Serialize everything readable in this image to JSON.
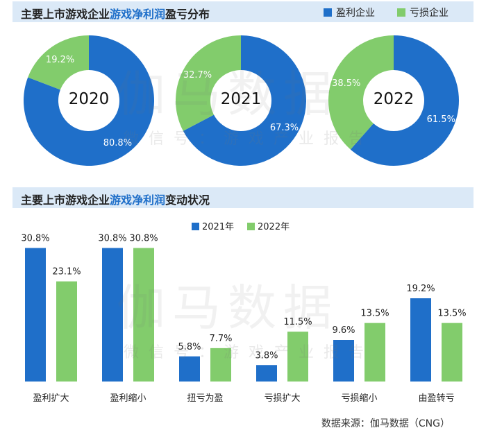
{
  "section1": {
    "title_prefix": "主要上市游戏企业",
    "title_highlight": "游戏净利润",
    "title_suffix": "盈亏分布",
    "legend": [
      {
        "label": "盈利企业",
        "color": "#1f6fc9"
      },
      {
        "label": "亏损企业",
        "color": "#82cc6c"
      }
    ]
  },
  "section2": {
    "title_prefix": "主要上市游戏企业",
    "title_highlight": "游戏净利润",
    "title_suffix": "变动状况"
  },
  "watermark": {
    "main": "伽马数据",
    "sub": "微信号：游戏产业报告"
  },
  "source": "数据来源：伽马数据（CNG）",
  "colors": {
    "blue": "#1f6fc9",
    "green": "#82cc6c"
  },
  "chart_data": [
    {
      "type": "pie",
      "title": "2020",
      "slices": [
        {
          "name": "盈利企业",
          "value": 80.8,
          "label": "80.8%"
        },
        {
          "name": "亏损企业",
          "value": 19.2,
          "label": "19.2%"
        }
      ]
    },
    {
      "type": "pie",
      "title": "2021",
      "slices": [
        {
          "name": "盈利企业",
          "value": 67.3,
          "label": "67.3%"
        },
        {
          "name": "亏损企业",
          "value": 32.7,
          "label": "32.7%"
        }
      ]
    },
    {
      "type": "pie",
      "title": "2022",
      "slices": [
        {
          "name": "盈利企业",
          "value": 61.5,
          "label": "61.5%"
        },
        {
          "name": "亏损企业",
          "value": 38.5,
          "label": "38.5%"
        }
      ]
    },
    {
      "type": "bar",
      "title": "主要上市游戏企业游戏净利润变动状况",
      "categories": [
        "盈利扩大",
        "盈利缩小",
        "扭亏为盈",
        "亏损扩大",
        "亏损缩小",
        "由盈转亏"
      ],
      "series": [
        {
          "name": "2021年",
          "values": [
            30.8,
            30.8,
            5.8,
            3.8,
            9.6,
            19.2
          ],
          "labels": [
            "30.8%",
            "30.8%",
            "5.8%",
            "3.8%",
            "9.6%",
            "19.2%"
          ]
        },
        {
          "name": "2022年",
          "values": [
            23.1,
            30.8,
            7.7,
            11.5,
            13.5,
            13.5
          ],
          "labels": [
            "23.1%",
            "30.8%",
            "7.7%",
            "11.5%",
            "13.5%",
            "13.5%"
          ]
        }
      ],
      "ylim": [
        0,
        35
      ],
      "legend_position": "top-center"
    }
  ]
}
